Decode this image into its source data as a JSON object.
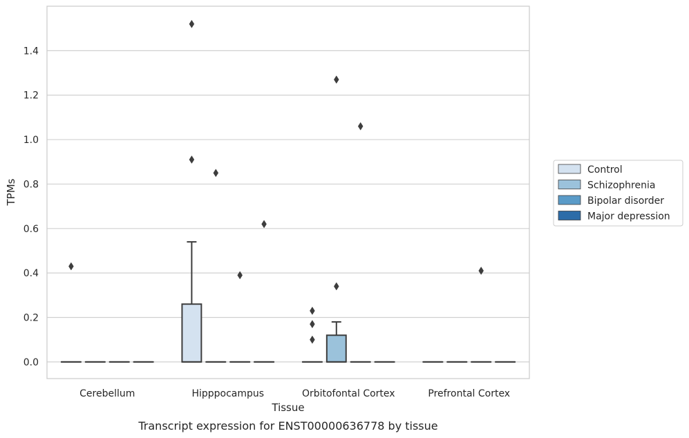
{
  "caption": "Transcript expression for ENST00000636778 by tissue",
  "chart_data": {
    "type": "box",
    "xlabel": "Tissue",
    "ylabel": "TPMs",
    "ylim": [
      -0.075,
      1.6
    ],
    "yticks": [
      0.0,
      0.2,
      0.4,
      0.6,
      0.8,
      1.0,
      1.2,
      1.4
    ],
    "ytick_labels": [
      "0.0",
      "0.2",
      "0.4",
      "0.6",
      "0.8",
      "1.0",
      "1.2",
      "1.4"
    ],
    "grid": "horizontal",
    "legend_position": "right",
    "categories": [
      "Cerebellum",
      "Hipppocampus",
      "Orbitofontal Cortex",
      "Prefrontal Cortex"
    ],
    "series": [
      {
        "name": "Control",
        "color": "#d4e2f0",
        "boxes": [
          {
            "q1": 0.0,
            "median": 0.0,
            "q3": 0.0,
            "whisker_low": 0.0,
            "whisker_high": 0.0,
            "outliers": [
              0.43
            ]
          },
          {
            "q1": 0.0,
            "median": 0.0,
            "q3": 0.26,
            "whisker_low": 0.0,
            "whisker_high": 0.54,
            "outliers": [
              1.52,
              0.91
            ]
          },
          {
            "q1": 0.0,
            "median": 0.0,
            "q3": 0.0,
            "whisker_low": 0.0,
            "whisker_high": 0.0,
            "outliers": [
              0.23,
              0.17,
              0.1
            ]
          },
          {
            "q1": 0.0,
            "median": 0.0,
            "q3": 0.0,
            "whisker_low": 0.0,
            "whisker_high": 0.0,
            "outliers": []
          }
        ]
      },
      {
        "name": "Schizophrenia",
        "color": "#9bc2db",
        "boxes": [
          {
            "q1": 0.0,
            "median": 0.0,
            "q3": 0.0,
            "whisker_low": 0.0,
            "whisker_high": 0.0,
            "outliers": []
          },
          {
            "q1": 0.0,
            "median": 0.0,
            "q3": 0.0,
            "whisker_low": 0.0,
            "whisker_high": 0.0,
            "outliers": [
              0.85
            ]
          },
          {
            "q1": 0.0,
            "median": 0.0,
            "q3": 0.12,
            "whisker_low": 0.0,
            "whisker_high": 0.18,
            "outliers": [
              1.27,
              0.34
            ]
          },
          {
            "q1": 0.0,
            "median": 0.0,
            "q3": 0.0,
            "whisker_low": 0.0,
            "whisker_high": 0.0,
            "outliers": []
          }
        ]
      },
      {
        "name": "Bipolar disorder",
        "color": "#5a9bc8",
        "boxes": [
          {
            "q1": 0.0,
            "median": 0.0,
            "q3": 0.0,
            "whisker_low": 0.0,
            "whisker_high": 0.0,
            "outliers": []
          },
          {
            "q1": 0.0,
            "median": 0.0,
            "q3": 0.0,
            "whisker_low": 0.0,
            "whisker_high": 0.0,
            "outliers": [
              0.39
            ]
          },
          {
            "q1": 0.0,
            "median": 0.0,
            "q3": 0.0,
            "whisker_low": 0.0,
            "whisker_high": 0.0,
            "outliers": [
              1.06
            ]
          },
          {
            "q1": 0.0,
            "median": 0.0,
            "q3": 0.0,
            "whisker_low": 0.0,
            "whisker_high": 0.0,
            "outliers": [
              0.41
            ]
          }
        ]
      },
      {
        "name": "Major depression",
        "color": "#2c6ca8",
        "boxes": [
          {
            "q1": 0.0,
            "median": 0.0,
            "q3": 0.0,
            "whisker_low": 0.0,
            "whisker_high": 0.0,
            "outliers": []
          },
          {
            "q1": 0.0,
            "median": 0.0,
            "q3": 0.0,
            "whisker_low": 0.0,
            "whisker_high": 0.0,
            "outliers": [
              0.62
            ]
          },
          {
            "q1": 0.0,
            "median": 0.0,
            "q3": 0.0,
            "whisker_low": 0.0,
            "whisker_high": 0.0,
            "outliers": []
          },
          {
            "q1": 0.0,
            "median": 0.0,
            "q3": 0.0,
            "whisker_low": 0.0,
            "whisker_high": 0.0,
            "outliers": []
          }
        ]
      }
    ]
  }
}
